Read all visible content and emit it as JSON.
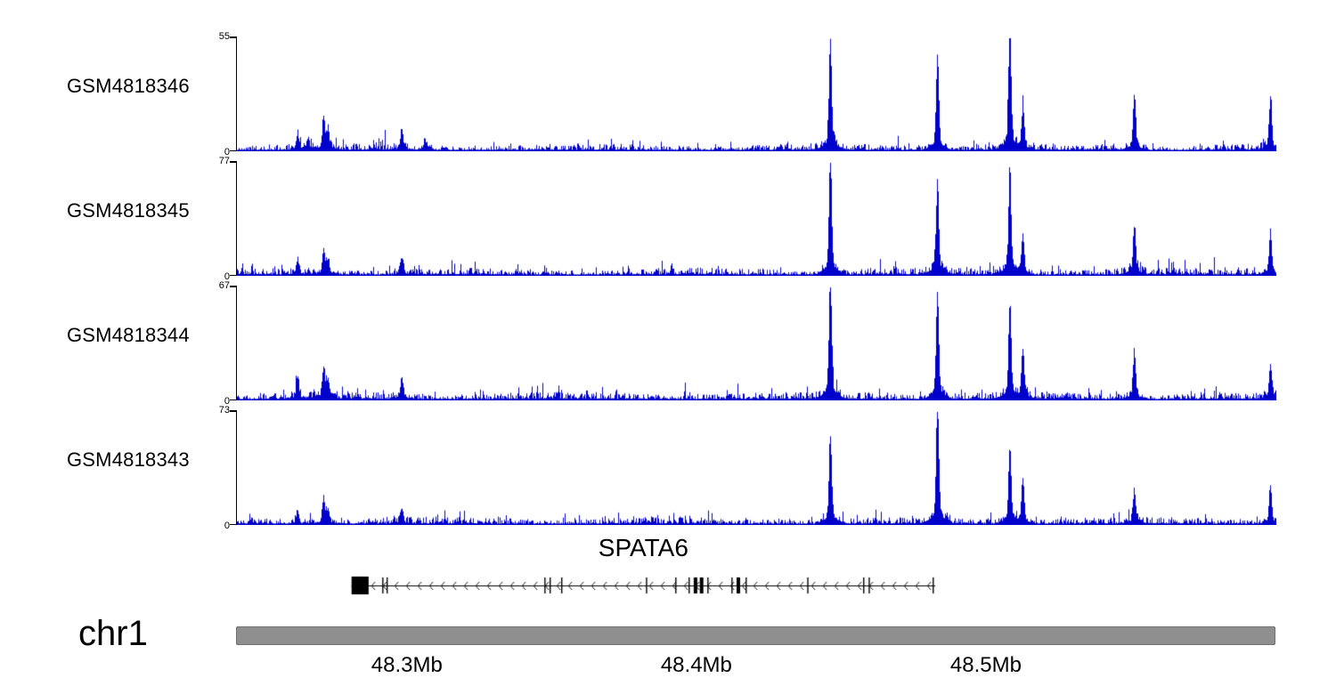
{
  "figure": {
    "background": "#ffffff"
  },
  "chart_data": {
    "type": "area",
    "description": "Genome browser coverage tracks over chr1 with SPATA6 gene model and chromosome axis",
    "region": {
      "chrom": "chr1",
      "start_mb": 48.241,
      "end_mb": 48.6,
      "unit": "Mb"
    },
    "x_ticks": [
      {
        "label": "48.3Mb",
        "mb": 48.3
      },
      {
        "label": "48.4Mb",
        "mb": 48.4
      },
      {
        "label": "48.5Mb",
        "mb": 48.5
      }
    ],
    "signal_color": "#0000cc",
    "axis_color": "#000000",
    "ideogram_color": "#8f8f8f",
    "tracks": [
      {
        "label": "GSM4818346",
        "ymin": 0,
        "ymax": 55,
        "noise": 2.4,
        "peaks": [
          {
            "mb": 48.262,
            "h": 7
          },
          {
            "mb": 48.2655,
            "h": 4
          },
          {
            "mb": 48.271,
            "h": 14
          },
          {
            "mb": 48.2725,
            "h": 8
          },
          {
            "mb": 48.298,
            "h": 9
          },
          {
            "mb": 48.306,
            "h": 4
          },
          {
            "mb": 48.446,
            "h": 48
          },
          {
            "mb": 48.483,
            "h": 43
          },
          {
            "mb": 48.508,
            "h": 55
          },
          {
            "mb": 48.5125,
            "h": 17
          },
          {
            "mb": 48.551,
            "h": 25
          },
          {
            "mb": 48.598,
            "h": 22
          }
        ]
      },
      {
        "label": "GSM4818345",
        "ymin": 0,
        "ymax": 77,
        "noise": 3.4,
        "peaks": [
          {
            "mb": 48.262,
            "h": 9
          },
          {
            "mb": 48.271,
            "h": 16
          },
          {
            "mb": 48.2725,
            "h": 9
          },
          {
            "mb": 48.298,
            "h": 10
          },
          {
            "mb": 48.446,
            "h": 76
          },
          {
            "mb": 48.483,
            "h": 57
          },
          {
            "mb": 48.508,
            "h": 63
          },
          {
            "mb": 48.5125,
            "h": 24
          },
          {
            "mb": 48.551,
            "h": 30
          },
          {
            "mb": 48.598,
            "h": 27
          }
        ]
      },
      {
        "label": "GSM4818344",
        "ymin": 0,
        "ymax": 67,
        "noise": 3.2,
        "peaks": [
          {
            "mb": 48.262,
            "h": 12
          },
          {
            "mb": 48.271,
            "h": 17
          },
          {
            "mb": 48.2725,
            "h": 10
          },
          {
            "mb": 48.298,
            "h": 12
          },
          {
            "mb": 48.446,
            "h": 66
          },
          {
            "mb": 48.483,
            "h": 59
          },
          {
            "mb": 48.508,
            "h": 51
          },
          {
            "mb": 48.5125,
            "h": 26
          },
          {
            "mb": 48.551,
            "h": 26
          },
          {
            "mb": 48.598,
            "h": 19
          }
        ]
      },
      {
        "label": "GSM4818343",
        "ymin": 0,
        "ymax": 73,
        "noise": 3.2,
        "peaks": [
          {
            "mb": 48.262,
            "h": 8
          },
          {
            "mb": 48.271,
            "h": 15
          },
          {
            "mb": 48.2725,
            "h": 8
          },
          {
            "mb": 48.298,
            "h": 9
          },
          {
            "mb": 48.446,
            "h": 52
          },
          {
            "mb": 48.483,
            "h": 72
          },
          {
            "mb": 48.508,
            "h": 46
          },
          {
            "mb": 48.5125,
            "h": 27
          },
          {
            "mb": 48.551,
            "h": 19
          },
          {
            "mb": 48.598,
            "h": 23
          }
        ]
      }
    ],
    "gene_track": {
      "title": "SPATA6",
      "strand": "-",
      "start_mb": 48.2809,
      "end_mb": 48.4825,
      "first_exon_box": {
        "start_mb": 48.2809,
        "end_mb": 48.2868
      },
      "exons_mb": [
        48.2917,
        48.2932,
        48.3477,
        48.3495,
        48.3535,
        48.3828,
        48.3929,
        48.3975,
        48.3997,
        48.4018,
        48.404,
        48.4123,
        48.4145,
        48.4172,
        48.4385,
        48.4578,
        48.4597,
        48.4818
      ],
      "thick_exons_mb": [
        48.3997,
        48.4018,
        48.4145
      ]
    }
  }
}
